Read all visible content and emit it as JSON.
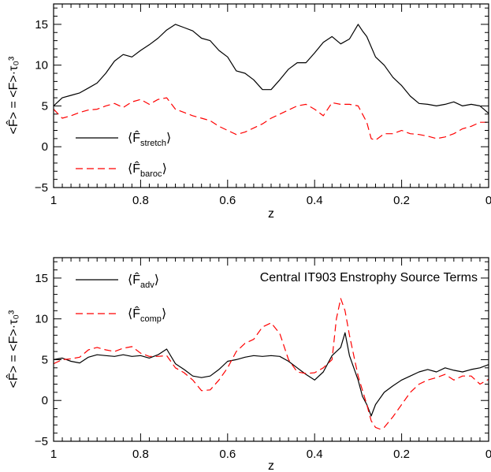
{
  "chart_data": [
    {
      "type": "line",
      "xlabel": "z",
      "ylabel": "<F̂> = <F>·τ₀³",
      "xlim": [
        1,
        0
      ],
      "ylim": [
        -5,
        17.5
      ],
      "xticks": [
        1,
        0.8,
        0.6,
        0.4,
        0.2,
        0
      ],
      "xtick_labels": [
        "1",
        "0.8",
        "0.6",
        "0.4",
        "0.2",
        "0"
      ],
      "yticks": [
        -5,
        0,
        5,
        10,
        15
      ],
      "ytick_labels": [
        "−5",
        "0",
        "5",
        "10",
        "15"
      ],
      "legend_position": "lower-left",
      "series": [
        {
          "name": "F̂",
          "name_sub": "stretch",
          "color": "#000000",
          "dash": "solid",
          "x": [
            1.0,
            0.98,
            0.96,
            0.94,
            0.92,
            0.9,
            0.88,
            0.86,
            0.84,
            0.82,
            0.8,
            0.78,
            0.76,
            0.74,
            0.72,
            0.7,
            0.68,
            0.66,
            0.64,
            0.62,
            0.6,
            0.58,
            0.56,
            0.54,
            0.52,
            0.5,
            0.48,
            0.46,
            0.44,
            0.42,
            0.4,
            0.38,
            0.36,
            0.34,
            0.32,
            0.3,
            0.29,
            0.28,
            0.26,
            0.24,
            0.22,
            0.2,
            0.18,
            0.16,
            0.14,
            0.12,
            0.1,
            0.08,
            0.06,
            0.04,
            0.02,
            0.0
          ],
          "y": [
            5.0,
            6.0,
            6.3,
            6.6,
            7.2,
            7.8,
            9.0,
            10.5,
            11.3,
            11.0,
            11.8,
            12.5,
            13.3,
            14.3,
            15.0,
            14.6,
            14.2,
            13.3,
            13.0,
            11.8,
            11.0,
            9.3,
            9.0,
            8.2,
            7.0,
            7.0,
            8.2,
            9.5,
            10.3,
            10.3,
            11.5,
            12.8,
            13.5,
            12.6,
            13.2,
            15.0,
            14.2,
            13.5,
            11.0,
            10.0,
            8.5,
            7.5,
            6.2,
            5.3,
            5.2,
            5.0,
            5.2,
            5.5,
            5.0,
            5.2,
            5.0,
            4.1
          ]
        },
        {
          "name": "F̂",
          "name_sub": "baroc",
          "color": "#ff0000",
          "dash": "dashed",
          "x": [
            1.0,
            0.98,
            0.96,
            0.94,
            0.92,
            0.9,
            0.88,
            0.86,
            0.84,
            0.82,
            0.8,
            0.78,
            0.76,
            0.74,
            0.72,
            0.7,
            0.68,
            0.66,
            0.64,
            0.62,
            0.6,
            0.58,
            0.56,
            0.54,
            0.52,
            0.5,
            0.48,
            0.46,
            0.44,
            0.42,
            0.4,
            0.38,
            0.36,
            0.34,
            0.32,
            0.3,
            0.28,
            0.27,
            0.26,
            0.24,
            0.22,
            0.2,
            0.18,
            0.16,
            0.14,
            0.12,
            0.1,
            0.08,
            0.06,
            0.04,
            0.02,
            0.0
          ],
          "y": [
            4.6,
            3.5,
            3.8,
            4.2,
            4.5,
            4.6,
            5.0,
            5.3,
            4.8,
            5.5,
            5.8,
            5.2,
            5.8,
            6.0,
            4.6,
            4.2,
            3.8,
            3.5,
            3.2,
            2.5,
            2.0,
            1.5,
            1.8,
            2.3,
            2.8,
            3.5,
            4.0,
            4.5,
            5.0,
            5.2,
            4.6,
            3.8,
            5.4,
            5.2,
            5.2,
            5.0,
            3.0,
            1.0,
            0.8,
            1.6,
            1.6,
            2.0,
            1.6,
            1.5,
            1.3,
            1.0,
            1.2,
            1.6,
            2.2,
            2.5,
            3.0,
            3.0
          ]
        }
      ]
    },
    {
      "type": "line",
      "xlabel": "z",
      "ylabel": "<F̂> = <F>·τ₀³",
      "annotation": "Central IT903 Enstrophy Source Terms",
      "xlim": [
        1,
        0
      ],
      "ylim": [
        -5,
        17.5
      ],
      "xticks": [
        1,
        0.8,
        0.6,
        0.4,
        0.2,
        0
      ],
      "xtick_labels": [
        "1",
        "0.8",
        "0.6",
        "0.4",
        "0.2",
        "0"
      ],
      "yticks": [
        -5,
        0,
        5,
        10,
        15
      ],
      "ytick_labels": [
        "−5",
        "0",
        "5",
        "10",
        "15"
      ],
      "legend_position": "top-left",
      "series": [
        {
          "name": "F̂",
          "name_sub": "adv",
          "color": "#000000",
          "dash": "solid",
          "x": [
            1.0,
            0.98,
            0.96,
            0.94,
            0.92,
            0.9,
            0.88,
            0.86,
            0.84,
            0.82,
            0.8,
            0.78,
            0.76,
            0.74,
            0.72,
            0.7,
            0.68,
            0.66,
            0.64,
            0.62,
            0.6,
            0.58,
            0.56,
            0.54,
            0.52,
            0.5,
            0.48,
            0.46,
            0.44,
            0.42,
            0.4,
            0.38,
            0.36,
            0.34,
            0.33,
            0.32,
            0.3,
            0.29,
            0.28,
            0.27,
            0.26,
            0.24,
            0.22,
            0.2,
            0.18,
            0.16,
            0.14,
            0.12,
            0.1,
            0.08,
            0.06,
            0.04,
            0.02,
            0.0
          ],
          "y": [
            5.0,
            5.2,
            4.8,
            4.6,
            5.3,
            5.6,
            5.5,
            5.4,
            5.6,
            5.4,
            5.5,
            5.2,
            5.6,
            6.3,
            4.5,
            3.8,
            3.0,
            2.8,
            3.0,
            3.8,
            4.8,
            5.0,
            5.3,
            5.5,
            5.4,
            5.5,
            5.4,
            4.8,
            4.0,
            3.2,
            2.5,
            3.5,
            5.5,
            6.5,
            8.3,
            5.5,
            2.5,
            0.5,
            -0.5,
            -1.9,
            -0.5,
            1.0,
            1.8,
            2.5,
            3.0,
            3.5,
            3.8,
            3.5,
            4.0,
            3.7,
            3.5,
            3.8,
            4.0,
            4.4
          ]
        },
        {
          "name": "F̂",
          "name_sub": "comp",
          "color": "#ff0000",
          "dash": "dashed",
          "x": [
            1.0,
            0.98,
            0.96,
            0.94,
            0.92,
            0.9,
            0.88,
            0.86,
            0.84,
            0.82,
            0.8,
            0.78,
            0.76,
            0.74,
            0.72,
            0.7,
            0.68,
            0.66,
            0.64,
            0.62,
            0.6,
            0.58,
            0.56,
            0.54,
            0.52,
            0.5,
            0.48,
            0.46,
            0.44,
            0.42,
            0.4,
            0.38,
            0.36,
            0.35,
            0.34,
            0.33,
            0.32,
            0.3,
            0.28,
            0.27,
            0.26,
            0.25,
            0.24,
            0.22,
            0.2,
            0.18,
            0.16,
            0.14,
            0.12,
            0.1,
            0.08,
            0.06,
            0.04,
            0.02,
            0.0
          ],
          "y": [
            4.5,
            5.0,
            5.1,
            5.3,
            6.2,
            6.5,
            6.2,
            6.0,
            6.4,
            6.6,
            5.8,
            5.4,
            5.4,
            5.5,
            4.0,
            3.4,
            2.5,
            1.2,
            1.3,
            2.5,
            4.0,
            6.0,
            7.0,
            7.5,
            9.0,
            9.5,
            8.2,
            5.0,
            3.5,
            3.3,
            3.4,
            4.0,
            5.0,
            10.0,
            12.5,
            11.0,
            8.0,
            3.0,
            -0.5,
            -2.5,
            -3.3,
            -3.5,
            -3.3,
            -2.0,
            -0.5,
            1.0,
            2.0,
            2.5,
            2.8,
            3.2,
            2.5,
            3.0,
            3.0,
            2.0,
            2.6
          ]
        }
      ]
    }
  ]
}
